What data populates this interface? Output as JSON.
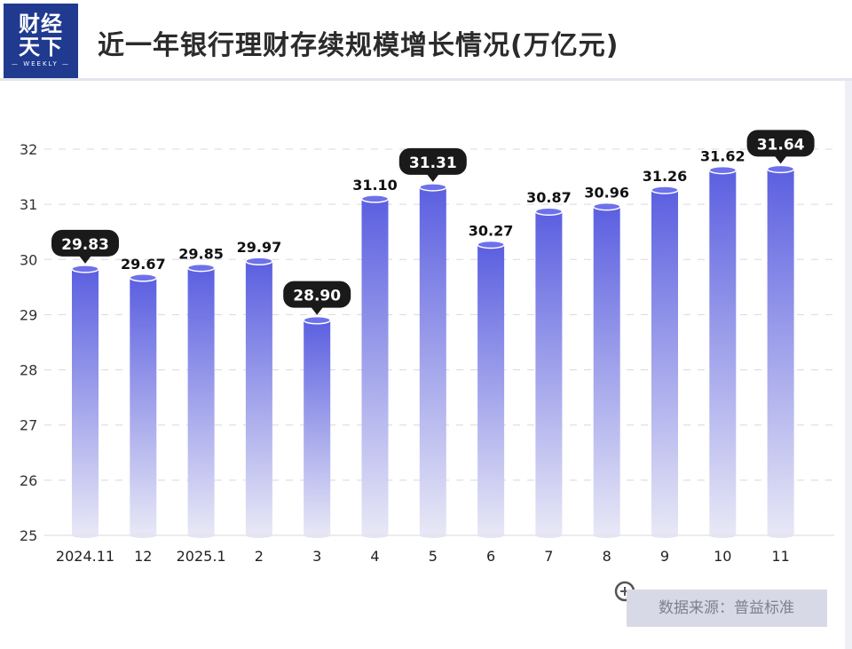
{
  "header": {
    "title": "近一年银行理财存续规模增长情况(万亿元)",
    "logo_text": "财经天下",
    "logo_sub": "WEEKLY"
  },
  "source": "数据来源：普益标准",
  "colors": {
    "bar_top": "#5b5fe0",
    "bar_bottom": "#e8e8f6",
    "callout": "#1a1a1a",
    "logo_bg": "#1f3a8f"
  },
  "chart_data": {
    "type": "bar",
    "title": "近一年银行理财存续规模增长情况(万亿元)",
    "categories": [
      "2024.11",
      "12",
      "2025.1",
      "2",
      "3",
      "4",
      "5",
      "6",
      "7",
      "8",
      "9",
      "10",
      "11"
    ],
    "values": [
      29.83,
      29.67,
      29.85,
      29.97,
      28.9,
      31.1,
      31.31,
      30.27,
      30.87,
      30.96,
      31.26,
      31.62,
      31.64
    ],
    "labels": [
      "29.83",
      "29.67",
      "29.85",
      "29.97",
      "28.90",
      "31.10",
      "31.31",
      "30.27",
      "30.87",
      "30.96",
      "31.26",
      "31.62",
      "31.64"
    ],
    "highlight": [
      0,
      4,
      6,
      12
    ],
    "ylim": [
      25,
      32
    ],
    "yticks": [
      "25",
      "26",
      "27",
      "28",
      "29",
      "30",
      "31",
      "32"
    ],
    "grid": true
  }
}
